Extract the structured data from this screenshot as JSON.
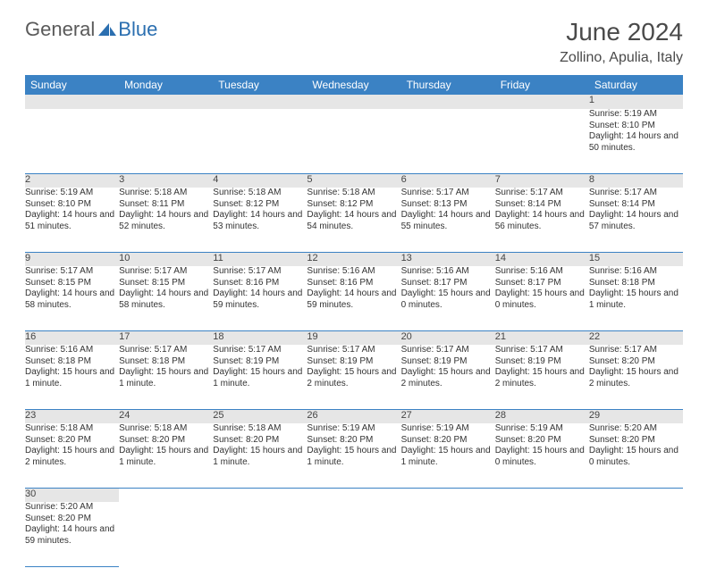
{
  "logo": {
    "part1": "General",
    "part2": "Blue"
  },
  "title": "June 2024",
  "location": "Zollino, Apulia, Italy",
  "colors": {
    "header_bg": "#3b82c4",
    "header_fg": "#ffffff",
    "daynum_bg": "#e6e6e6",
    "row_border": "#3b82c4",
    "logo_gray": "#5a5a5a",
    "logo_blue": "#2b6fb0"
  },
  "weekdays": [
    "Sunday",
    "Monday",
    "Tuesday",
    "Wednesday",
    "Thursday",
    "Friday",
    "Saturday"
  ],
  "weeks": [
    [
      null,
      null,
      null,
      null,
      null,
      null,
      {
        "n": "1",
        "sr": "Sunrise: 5:19 AM",
        "ss": "Sunset: 8:10 PM",
        "dl": "Daylight: 14 hours and 50 minutes."
      }
    ],
    [
      {
        "n": "2",
        "sr": "Sunrise: 5:19 AM",
        "ss": "Sunset: 8:10 PM",
        "dl": "Daylight: 14 hours and 51 minutes."
      },
      {
        "n": "3",
        "sr": "Sunrise: 5:18 AM",
        "ss": "Sunset: 8:11 PM",
        "dl": "Daylight: 14 hours and 52 minutes."
      },
      {
        "n": "4",
        "sr": "Sunrise: 5:18 AM",
        "ss": "Sunset: 8:12 PM",
        "dl": "Daylight: 14 hours and 53 minutes."
      },
      {
        "n": "5",
        "sr": "Sunrise: 5:18 AM",
        "ss": "Sunset: 8:12 PM",
        "dl": "Daylight: 14 hours and 54 minutes."
      },
      {
        "n": "6",
        "sr": "Sunrise: 5:17 AM",
        "ss": "Sunset: 8:13 PM",
        "dl": "Daylight: 14 hours and 55 minutes."
      },
      {
        "n": "7",
        "sr": "Sunrise: 5:17 AM",
        "ss": "Sunset: 8:14 PM",
        "dl": "Daylight: 14 hours and 56 minutes."
      },
      {
        "n": "8",
        "sr": "Sunrise: 5:17 AM",
        "ss": "Sunset: 8:14 PM",
        "dl": "Daylight: 14 hours and 57 minutes."
      }
    ],
    [
      {
        "n": "9",
        "sr": "Sunrise: 5:17 AM",
        "ss": "Sunset: 8:15 PM",
        "dl": "Daylight: 14 hours and 58 minutes."
      },
      {
        "n": "10",
        "sr": "Sunrise: 5:17 AM",
        "ss": "Sunset: 8:15 PM",
        "dl": "Daylight: 14 hours and 58 minutes."
      },
      {
        "n": "11",
        "sr": "Sunrise: 5:17 AM",
        "ss": "Sunset: 8:16 PM",
        "dl": "Daylight: 14 hours and 59 minutes."
      },
      {
        "n": "12",
        "sr": "Sunrise: 5:16 AM",
        "ss": "Sunset: 8:16 PM",
        "dl": "Daylight: 14 hours and 59 minutes."
      },
      {
        "n": "13",
        "sr": "Sunrise: 5:16 AM",
        "ss": "Sunset: 8:17 PM",
        "dl": "Daylight: 15 hours and 0 minutes."
      },
      {
        "n": "14",
        "sr": "Sunrise: 5:16 AM",
        "ss": "Sunset: 8:17 PM",
        "dl": "Daylight: 15 hours and 0 minutes."
      },
      {
        "n": "15",
        "sr": "Sunrise: 5:16 AM",
        "ss": "Sunset: 8:18 PM",
        "dl": "Daylight: 15 hours and 1 minute."
      }
    ],
    [
      {
        "n": "16",
        "sr": "Sunrise: 5:16 AM",
        "ss": "Sunset: 8:18 PM",
        "dl": "Daylight: 15 hours and 1 minute."
      },
      {
        "n": "17",
        "sr": "Sunrise: 5:17 AM",
        "ss": "Sunset: 8:18 PM",
        "dl": "Daylight: 15 hours and 1 minute."
      },
      {
        "n": "18",
        "sr": "Sunrise: 5:17 AM",
        "ss": "Sunset: 8:19 PM",
        "dl": "Daylight: 15 hours and 1 minute."
      },
      {
        "n": "19",
        "sr": "Sunrise: 5:17 AM",
        "ss": "Sunset: 8:19 PM",
        "dl": "Daylight: 15 hours and 2 minutes."
      },
      {
        "n": "20",
        "sr": "Sunrise: 5:17 AM",
        "ss": "Sunset: 8:19 PM",
        "dl": "Daylight: 15 hours and 2 minutes."
      },
      {
        "n": "21",
        "sr": "Sunrise: 5:17 AM",
        "ss": "Sunset: 8:19 PM",
        "dl": "Daylight: 15 hours and 2 minutes."
      },
      {
        "n": "22",
        "sr": "Sunrise: 5:17 AM",
        "ss": "Sunset: 8:20 PM",
        "dl": "Daylight: 15 hours and 2 minutes."
      }
    ],
    [
      {
        "n": "23",
        "sr": "Sunrise: 5:18 AM",
        "ss": "Sunset: 8:20 PM",
        "dl": "Daylight: 15 hours and 2 minutes."
      },
      {
        "n": "24",
        "sr": "Sunrise: 5:18 AM",
        "ss": "Sunset: 8:20 PM",
        "dl": "Daylight: 15 hours and 1 minute."
      },
      {
        "n": "25",
        "sr": "Sunrise: 5:18 AM",
        "ss": "Sunset: 8:20 PM",
        "dl": "Daylight: 15 hours and 1 minute."
      },
      {
        "n": "26",
        "sr": "Sunrise: 5:19 AM",
        "ss": "Sunset: 8:20 PM",
        "dl": "Daylight: 15 hours and 1 minute."
      },
      {
        "n": "27",
        "sr": "Sunrise: 5:19 AM",
        "ss": "Sunset: 8:20 PM",
        "dl": "Daylight: 15 hours and 1 minute."
      },
      {
        "n": "28",
        "sr": "Sunrise: 5:19 AM",
        "ss": "Sunset: 8:20 PM",
        "dl": "Daylight: 15 hours and 0 minutes."
      },
      {
        "n": "29",
        "sr": "Sunrise: 5:20 AM",
        "ss": "Sunset: 8:20 PM",
        "dl": "Daylight: 15 hours and 0 minutes."
      }
    ],
    [
      {
        "n": "30",
        "sr": "Sunrise: 5:20 AM",
        "ss": "Sunset: 8:20 PM",
        "dl": "Daylight: 14 hours and 59 minutes."
      },
      null,
      null,
      null,
      null,
      null,
      null
    ]
  ]
}
